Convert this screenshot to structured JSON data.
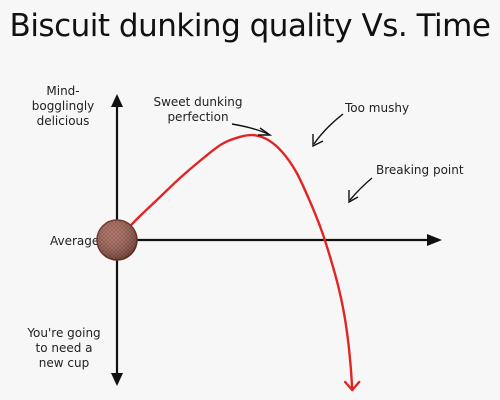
{
  "chart_data": {
    "type": "line",
    "title": "Biscuit dunking quality Vs. Time",
    "xlabel": "",
    "ylabel": "",
    "y_labels": {
      "top": [
        "Mind-bogglingly",
        "delicious"
      ],
      "middle": "Average",
      "bottom": [
        "You're going",
        "to need a",
        "new cup"
      ]
    },
    "series": [
      {
        "x": [
          0,
          1.5,
          3,
          4.5,
          6,
          7.5,
          8.8,
          9.8,
          10.8,
          11.8,
          12.8,
          13.8,
          14.6,
          15.2,
          15.8,
          16.2,
          16.5,
          16.7,
          16.8
        ],
        "y": [
          0,
          0.55,
          1.05,
          1.55,
          2.0,
          2.4,
          2.58,
          2.62,
          2.5,
          2.2,
          1.7,
          0.95,
          0.25,
          -0.4,
          -1.15,
          -1.8,
          -2.5,
          -3.2,
          -3.75
        ]
      }
    ],
    "annotations": [
      {
        "text": [
          "Sweet dunking",
          "perfection"
        ],
        "x": 9.8,
        "y": 2.62
      },
      {
        "text": [
          "Too mushy"
        ],
        "x": 12.2,
        "y": 2.0
      },
      {
        "text": [
          "Breaking point"
        ],
        "x": 14.9,
        "y": 0.2
      }
    ],
    "xlim": [
      0,
      20
    ],
    "ylim": [
      -4,
      4
    ],
    "grid": false,
    "colors": {
      "curve": "#e32424",
      "axes": "#111111",
      "biscuit": "#8a4a3c"
    },
    "icons": {
      "origin_marker": "biscuit-icon"
    }
  }
}
